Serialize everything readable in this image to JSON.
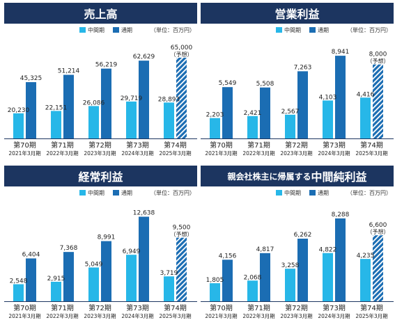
{
  "legend": {
    "interim": "中間期",
    "full": "通期",
    "unit": "（単位：百万円）"
  },
  "colors": {
    "interim": "#27b7e8",
    "full": "#1b6db3",
    "header": "#1c3560",
    "hatch": "#ffffff"
  },
  "forecast_label": "（予想）",
  "chart_data": [
    {
      "type": "bar",
      "title": "売上高",
      "categories": [
        "第70期",
        "第71期",
        "第72期",
        "第73期",
        "第74期"
      ],
      "sub_categories": [
        "2021年3月期",
        "2022年3月期",
        "2023年3月期",
        "2024年3月期",
        "2025年3月期"
      ],
      "series": [
        {
          "name": "中間期",
          "values": [
            20230,
            22151,
            26086,
            29719,
            28893
          ],
          "labels": [
            "20,230",
            "22,151",
            "26,086",
            "29,719",
            "28,893"
          ]
        },
        {
          "name": "通期",
          "values": [
            45325,
            51214,
            56219,
            62629,
            65000
          ],
          "labels": [
            "45,325",
            "51,214",
            "56,219",
            "62,629",
            "65,000"
          ]
        }
      ],
      "forecast_index": 4,
      "ymax": 70000
    },
    {
      "type": "bar",
      "title": "営業利益",
      "categories": [
        "第70期",
        "第71期",
        "第72期",
        "第73期",
        "第74期"
      ],
      "sub_categories": [
        "2021年3月期",
        "2022年3月期",
        "2023年3月期",
        "2024年3月期",
        "2025年3月期"
      ],
      "series": [
        {
          "name": "中間期",
          "values": [
            2203,
            2421,
            2567,
            4103,
            4416
          ],
          "labels": [
            "2,203",
            "2,421",
            "2,567",
            "4,103",
            "4,416"
          ]
        },
        {
          "name": "通期",
          "values": [
            5549,
            5508,
            7263,
            8941,
            8000
          ],
          "labels": [
            "5,549",
            "5,508",
            "7,263",
            "8,941",
            "8,000"
          ]
        }
      ],
      "forecast_index": 4,
      "ymax": 9400
    },
    {
      "type": "bar",
      "title": "経常利益",
      "categories": [
        "第70期",
        "第71期",
        "第72期",
        "第73期",
        "第74期"
      ],
      "sub_categories": [
        "2021年3月期",
        "2022年3月期",
        "2023年3月期",
        "2024年3月期",
        "2025年3月期"
      ],
      "series": [
        {
          "name": "中間期",
          "values": [
            2548,
            2915,
            5049,
            6949,
            3719
          ],
          "labels": [
            "2,548",
            "2,915",
            "5,049",
            "6,949",
            "3,719"
          ]
        },
        {
          "name": "通期",
          "values": [
            6404,
            7368,
            8991,
            12638,
            9500
          ],
          "labels": [
            "6,404",
            "7,368",
            "8,991",
            "12,638",
            "9,500"
          ]
        }
      ],
      "forecast_index": 4,
      "ymax": 13000
    },
    {
      "type": "bar",
      "title_prefix": "親会社株主に帰属する",
      "title": "中間純利益",
      "categories": [
        "第70期",
        "第71期",
        "第72期",
        "第73期",
        "第74期"
      ],
      "sub_categories": [
        "2021年3月期",
        "2022年3月期",
        "2023年3月期",
        "2024年3月期",
        "2025年3月期"
      ],
      "series": [
        {
          "name": "中間期",
          "values": [
            1805,
            2068,
            3258,
            4822,
            4235
          ],
          "labels": [
            "1,805",
            "2,068",
            "3,258",
            "4,822",
            "4,235"
          ]
        },
        {
          "name": "通期",
          "values": [
            4156,
            4817,
            6262,
            8288,
            6600
          ],
          "labels": [
            "4,156",
            "4,817",
            "6,262",
            "8,288",
            "6,600"
          ]
        }
      ],
      "forecast_index": 4,
      "ymax": 8700
    }
  ]
}
